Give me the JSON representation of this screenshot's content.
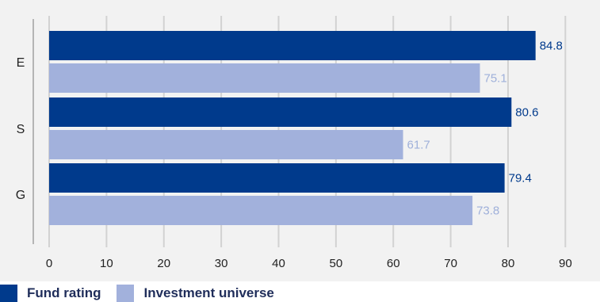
{
  "chart_data": {
    "type": "bar",
    "orientation": "horizontal",
    "categories": [
      "E",
      "S",
      "G"
    ],
    "series": [
      {
        "name": "Fund rating",
        "values": [
          84.8,
          80.6,
          79.4
        ],
        "color": "#003a8c",
        "label_color": "#003a8c"
      },
      {
        "name": "Investment universe",
        "values": [
          75.1,
          61.7,
          73.8
        ],
        "color": "#a2b1dc",
        "label_color": "#9fb0da"
      }
    ],
    "xlim": [
      0,
      90
    ],
    "xticks": [
      0,
      10,
      20,
      30,
      40,
      50,
      60,
      70,
      80,
      90
    ],
    "grid": true,
    "legend": "bottom-left",
    "title": "",
    "xlabel": "",
    "ylabel": ""
  }
}
